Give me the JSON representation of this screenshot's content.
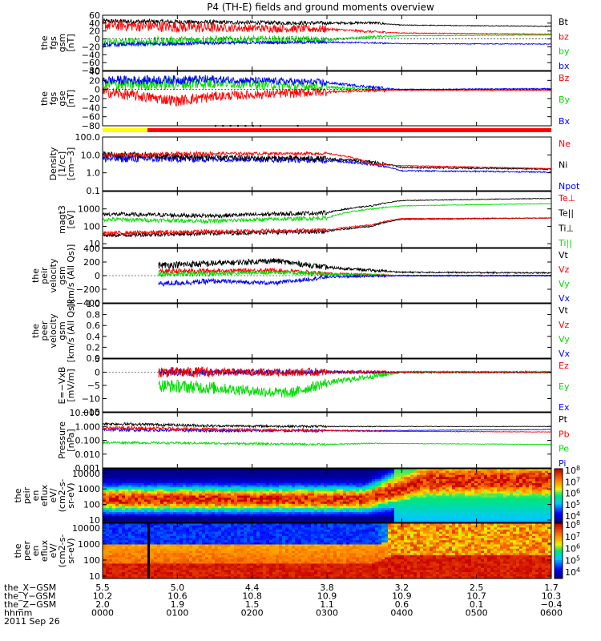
{
  "title": "P4 (TH-E) fields and ground moments overview",
  "colors": {
    "black": "#000000",
    "red": "#ff0000",
    "green": "#00dd00",
    "blue": "#0000ff",
    "yellow": "#ffff00"
  },
  "chart_data": [
    {
      "type": "line",
      "id": "fgs-gsm",
      "ylabel": [
        "the",
        "fgs",
        "gsm",
        "[nT]"
      ],
      "ylim": [
        -80,
        60
      ],
      "yticks": [
        "60",
        "40",
        "20",
        "0",
        "−20",
        "−40",
        "−60",
        "−80"
      ],
      "legend": [
        "Bt",
        "bz",
        "by",
        "bx"
      ],
      "legend_colors": [
        "#000000",
        "#ff0000",
        "#00dd00",
        "#0000ff"
      ],
      "series": [
        {
          "name": "Bt",
          "knots": [
            [
              0,
              45
            ],
            [
              1.5,
              42
            ],
            [
              3.0,
              40
            ],
            [
              3.6,
              41
            ],
            [
              4.0,
              35
            ],
            [
              6,
              32
            ]
          ],
          "noise": [
            6,
            5,
            3,
            1
          ]
        },
        {
          "name": "bz",
          "knots": [
            [
              0,
              35
            ],
            [
              1.5,
              28
            ],
            [
              3.0,
              25
            ],
            [
              3.6,
              18
            ],
            [
              4.0,
              15
            ],
            [
              6,
              12
            ]
          ],
          "noise": [
            14,
            10,
            3,
            1
          ]
        },
        {
          "name": "by",
          "knots": [
            [
              0,
              -10
            ],
            [
              1.5,
              -2
            ],
            [
              3.0,
              -2
            ],
            [
              3.6,
              5
            ],
            [
              4.0,
              8
            ],
            [
              6,
              10
            ]
          ],
          "noise": [
            12,
            10,
            3,
            1
          ]
        },
        {
          "name": "bx",
          "knots": [
            [
              0,
              -15
            ],
            [
              1.5,
              -10
            ],
            [
              3.0,
              -8
            ],
            [
              3.6,
              -10
            ],
            [
              4.0,
              -12
            ],
            [
              6,
              -13
            ]
          ],
          "noise": [
            5,
            4,
            2,
            1
          ]
        }
      ]
    },
    {
      "type": "line",
      "id": "fgs-gse",
      "ylabel": [
        "the",
        "fgs",
        "gse",
        "[nT]"
      ],
      "ylim": [
        -80,
        40
      ],
      "yticks": [
        "40",
        "20",
        "0",
        "−20",
        "−40",
        "−60",
        "−80"
      ],
      "legend": [
        "Bz",
        "By",
        "Bx"
      ],
      "legend_colors": [
        "#ff0000",
        "#00dd00",
        "#0000ff"
      ],
      "series": [
        {
          "name": "By",
          "knots": [
            [
              0,
              10
            ],
            [
              1.5,
              15
            ],
            [
              3.0,
              5
            ],
            [
              3.6,
              0
            ],
            [
              4.0,
              0
            ],
            [
              6,
              0
            ]
          ],
          "noise": [
            14,
            10,
            3,
            1
          ]
        },
        {
          "name": "Bz",
          "knots": [
            [
              0,
              -5
            ],
            [
              1.0,
              -25
            ],
            [
              1.5,
              -15
            ],
            [
              3.0,
              -5
            ],
            [
              3.6,
              -2
            ],
            [
              6,
              -2
            ]
          ],
          "noise": [
            12,
            10,
            3,
            1
          ]
        },
        {
          "name": "Bx",
          "knots": [
            [
              0,
              20
            ],
            [
              1.5,
              22
            ],
            [
              3.0,
              15
            ],
            [
              3.6,
              5
            ],
            [
              4.0,
              0
            ],
            [
              6,
              2
            ]
          ],
          "noise": [
            10,
            8,
            3,
            1
          ]
        }
      ]
    },
    {
      "type": "line",
      "id": "density",
      "log": true,
      "ylabel": [
        "Density",
        "[1/cc]",
        "[cm−3]"
      ],
      "ylim": [
        0.1,
        100
      ],
      "yticks": [
        "100.0",
        "10.0",
        "1.0",
        "0.1"
      ],
      "legend": [
        "Ne",
        "Ni",
        "Npot"
      ],
      "legend_colors": [
        "#ff0000",
        "#000000",
        "#0000ff"
      ],
      "series": [
        {
          "name": "Npot",
          "knots": [
            [
              0,
              6
            ],
            [
              1.5,
              6
            ],
            [
              3.0,
              5
            ],
            [
              3.6,
              3
            ],
            [
              4.0,
              1.3
            ],
            [
              6,
              1.1
            ]
          ],
          "noise": [
            0.5,
            0.4,
            0.2,
            0.1
          ]
        },
        {
          "name": "Ni",
          "knots": [
            [
              0,
              10
            ],
            [
              1.5,
              7
            ],
            [
              3.0,
              6
            ],
            [
              3.6,
              4
            ],
            [
              4.0,
              2
            ],
            [
              6,
              1.6
            ]
          ],
          "noise": [
            0.5,
            0.4,
            0.2,
            0.1
          ]
        },
        {
          "name": "Ne",
          "knots": [
            [
              0,
              10
            ],
            [
              0.5,
              10
            ],
            [
              1.5,
              12
            ],
            [
              3.0,
              12
            ],
            [
              3.6,
              3
            ],
            [
              4.0,
              2.5
            ],
            [
              6,
              1.7
            ]
          ],
          "noise": [
            0.3,
            0.2,
            0.1,
            0.05
          ]
        }
      ]
    },
    {
      "type": "line",
      "id": "temperature",
      "log": true,
      "ylabel": [
        "magt3",
        "[eV]"
      ],
      "ylim": [
        6,
        10000
      ],
      "yticks": [
        "1000",
        "100",
        "10"
      ],
      "legend": [
        "Te⊥",
        "Te||",
        "Ti⊥",
        "Ti||"
      ],
      "legend_colors": [
        "#ff0000",
        "#000000",
        "#000000",
        "#00dd00"
      ],
      "series": [
        {
          "name": "Ti||",
          "knots": [
            [
              0,
              250
            ],
            [
              1.5,
              200
            ],
            [
              3.0,
              300
            ],
            [
              3.6,
              1000
            ],
            [
              4.0,
              1500
            ],
            [
              6,
              2000
            ]
          ],
          "noise": [
            0.3,
            0.3,
            0.1,
            0.05
          ]
        },
        {
          "name": "Te||",
          "knots": [
            [
              0,
              30
            ],
            [
              1.5,
              40
            ],
            [
              3.0,
              50
            ],
            [
              3.6,
              100
            ],
            [
              4.0,
              250
            ],
            [
              6,
              300
            ]
          ],
          "noise": [
            0.3,
            0.3,
            0.1,
            0.05
          ]
        },
        {
          "name": "Te⊥",
          "knots": [
            [
              0,
              40
            ],
            [
              1.5,
              50
            ],
            [
              3.0,
              60
            ],
            [
              3.6,
              120
            ],
            [
              4.0,
              280
            ],
            [
              6,
              300
            ]
          ],
          "noise": [
            0.3,
            0.3,
            0.1,
            0.05
          ]
        },
        {
          "name": "Ti⊥",
          "knots": [
            [
              0,
              500
            ],
            [
              1.5,
              400
            ],
            [
              3.0,
              600
            ],
            [
              3.6,
              1500
            ],
            [
              4.0,
              3000
            ],
            [
              6,
              4000
            ]
          ],
          "noise": [
            0.3,
            0.3,
            0.1,
            0.05
          ]
        }
      ]
    },
    {
      "type": "line",
      "id": "peir-velocity",
      "ylabel": [
        "the",
        "peir",
        "velocity",
        "gsm",
        "[km/s (All Qs)]"
      ],
      "ylim": [
        -400,
        400
      ],
      "yticks": [
        "400",
        "200",
        "0",
        "−200",
        "−400"
      ],
      "legend": [
        "Vt",
        "Vz",
        "Vy",
        "Vx"
      ],
      "legend_colors": [
        "#000000",
        "#ff0000",
        "#00dd00",
        "#0000ff"
      ],
      "start": 0.75,
      "series": [
        {
          "name": "Vt",
          "knots": [
            [
              0.75,
              150
            ],
            [
              1.5,
              180
            ],
            [
              2.3,
              220
            ],
            [
              3.0,
              120
            ],
            [
              4.0,
              50
            ],
            [
              6,
              40
            ]
          ],
          "noise": [
            50,
            40,
            20,
            10
          ]
        },
        {
          "name": "Vz",
          "knots": [
            [
              0.75,
              60
            ],
            [
              1.5,
              70
            ],
            [
              2.3,
              80
            ],
            [
              3.0,
              30
            ],
            [
              4.0,
              0
            ],
            [
              6,
              0
            ]
          ],
          "noise": [
            40,
            30,
            15,
            8
          ]
        },
        {
          "name": "Vy",
          "knots": [
            [
              0.75,
              20
            ],
            [
              1.5,
              30
            ],
            [
              2.3,
              50
            ],
            [
              3.0,
              20
            ],
            [
              4.0,
              0
            ],
            [
              6,
              0
            ]
          ],
          "noise": [
            40,
            30,
            15,
            8
          ]
        },
        {
          "name": "Vx",
          "knots": [
            [
              0.75,
              -120
            ],
            [
              1.5,
              -80
            ],
            [
              2.3,
              -110
            ],
            [
              3.0,
              -20
            ],
            [
              4.0,
              0
            ],
            [
              6,
              0
            ]
          ],
          "noise": [
            40,
            30,
            15,
            8
          ]
        }
      ]
    },
    {
      "type": "line",
      "id": "peer-velocity",
      "ylabel": [
        "the",
        "peer",
        "velocity",
        "gsm",
        "[km/s (All Qs)]"
      ],
      "ylim": [
        0,
        1
      ],
      "yticks": [
        "1.0",
        "0.8",
        "0.6",
        "0.4",
        "0.2",
        "0.0"
      ],
      "legend": [
        "Vt",
        "Vz",
        "Vy",
        "Vx"
      ],
      "legend_colors": [
        "#000000",
        "#ff0000",
        "#00dd00",
        "#0000ff"
      ],
      "series": []
    },
    {
      "type": "line",
      "id": "efield",
      "ylabel": [
        "E=−VxB",
        "[mV/m]"
      ],
      "ylim": [
        -15,
        5
      ],
      "yticks": [
        "5",
        "0",
        "−5",
        "−10",
        "−15"
      ],
      "legend": [
        "Ez",
        "Ey",
        "Ex"
      ],
      "legend_colors": [
        "#ff0000",
        "#00dd00",
        "#0000ff"
      ],
      "start": 0.75,
      "series": [
        {
          "name": "Ex",
          "knots": [
            [
              0.75,
              0
            ],
            [
              6,
              0
            ]
          ],
          "noise": [
            1.5,
            1.0,
            0.6,
            0.3
          ]
        },
        {
          "name": "Ey",
          "knots": [
            [
              0.75,
              -5
            ],
            [
              1.5,
              -6
            ],
            [
              2.5,
              -8
            ],
            [
              3.0,
              -4
            ],
            [
              4.0,
              0
            ],
            [
              6,
              0
            ]
          ],
          "noise": [
            2.5,
            2,
            1,
            0.4
          ]
        },
        {
          "name": "Ez",
          "knots": [
            [
              0.75,
              0
            ],
            [
              6,
              0
            ]
          ],
          "noise": [
            2,
            1.5,
            0.6,
            0.3
          ]
        }
      ]
    },
    {
      "type": "line",
      "id": "pressure",
      "log": true,
      "ylabel": [
        "Pressure",
        "[nPa]"
      ],
      "ylim": [
        0.001,
        10
      ],
      "yticks": [
        "10.000",
        "1.000",
        "0.100",
        "0.010",
        "0.001"
      ],
      "legend": [
        "Pt",
        "Pb",
        "Pe",
        "Pi"
      ],
      "legend_colors": [
        "#000000",
        "#ff0000",
        "#00dd00",
        "#0000ff"
      ],
      "series": [
        {
          "name": "Pe",
          "knots": [
            [
              0,
              0.07
            ],
            [
              1.5,
              0.06
            ],
            [
              3.0,
              0.05
            ],
            [
              3.6,
              0.06
            ],
            [
              6,
              0.05
            ]
          ],
          "noise": [
            0.2,
            0.2,
            0.1,
            0.05
          ]
        },
        {
          "name": "Pi",
          "knots": [
            [
              0,
              0.6
            ],
            [
              1.5,
              0.5
            ],
            [
              3.0,
              0.5
            ],
            [
              3.6,
              0.5
            ],
            [
              6,
              0.6
            ]
          ],
          "noise": [
            0.3,
            0.25,
            0.1,
            0.05
          ]
        },
        {
          "name": "Pb",
          "knots": [
            [
              0,
              0.8
            ],
            [
              1.5,
              0.6
            ],
            [
              3.0,
              0.5
            ],
            [
              3.6,
              0.45
            ],
            [
              6,
              0.4
            ]
          ],
          "noise": [
            0.3,
            0.25,
            0.1,
            0.05
          ]
        },
        {
          "name": "Pt",
          "knots": [
            [
              0,
              1.6
            ],
            [
              1.5,
              1.1
            ],
            [
              3.0,
              1.0
            ],
            [
              3.6,
              1.0
            ],
            [
              6,
              1.0
            ]
          ],
          "noise": [
            0.25,
            0.2,
            0.08,
            0.04
          ]
        }
      ]
    },
    {
      "type": "heatmap",
      "id": "peir-eflux",
      "log": true,
      "ylabel": [
        "the",
        "peir",
        "en",
        "eflux",
        "eV/",
        "(cm2-s-",
        "sr-eV)"
      ],
      "ylim": [
        7,
        20000
      ],
      "yticks": [
        "10000",
        "1000",
        "100",
        "10"
      ]
    },
    {
      "type": "heatmap",
      "id": "peer-eflux",
      "log": true,
      "ylabel": [
        "the",
        "peer",
        "en",
        "eflux",
        "eV/",
        "(cm2-s-",
        "sr-eV)"
      ],
      "ylim": [
        7,
        20000
      ],
      "yticks": [
        "10000",
        "1000",
        "100",
        "10"
      ]
    }
  ],
  "colorbar": {
    "top_labels": [
      "10^8",
      "10^7",
      "10^6",
      "10^5",
      "10^4"
    ],
    "bottom_labels": [
      "10^8",
      "10^7",
      "10^6",
      "10^5",
      "10^4"
    ]
  },
  "state_bar": {
    "yellow_end_hours": 0.6
  },
  "xaxis": {
    "x_hours": [
      0,
      1,
      2,
      3,
      4,
      5,
      6
    ],
    "rows": [
      {
        "label": "the_X−GSM",
        "values": [
          "5.5",
          "5.0",
          "4.4",
          "3.8",
          "3.2",
          "2.5",
          "1.7"
        ]
      },
      {
        "label": "the_Y−GSM",
        "values": [
          "10.2",
          "10.6",
          "10.8",
          "10.9",
          "10.9",
          "10.7",
          "10.3"
        ]
      },
      {
        "label": "the_Z−GSM",
        "values": [
          "2.0",
          "1.9",
          "1.5",
          "1.1",
          "0.6",
          "0.1",
          "−0.4"
        ]
      },
      {
        "label": "hhmm",
        "values": [
          "0000",
          "0100",
          "0200",
          "0300",
          "0400",
          "0500",
          "0600"
        ]
      }
    ],
    "date": "2011 Sep 26"
  }
}
